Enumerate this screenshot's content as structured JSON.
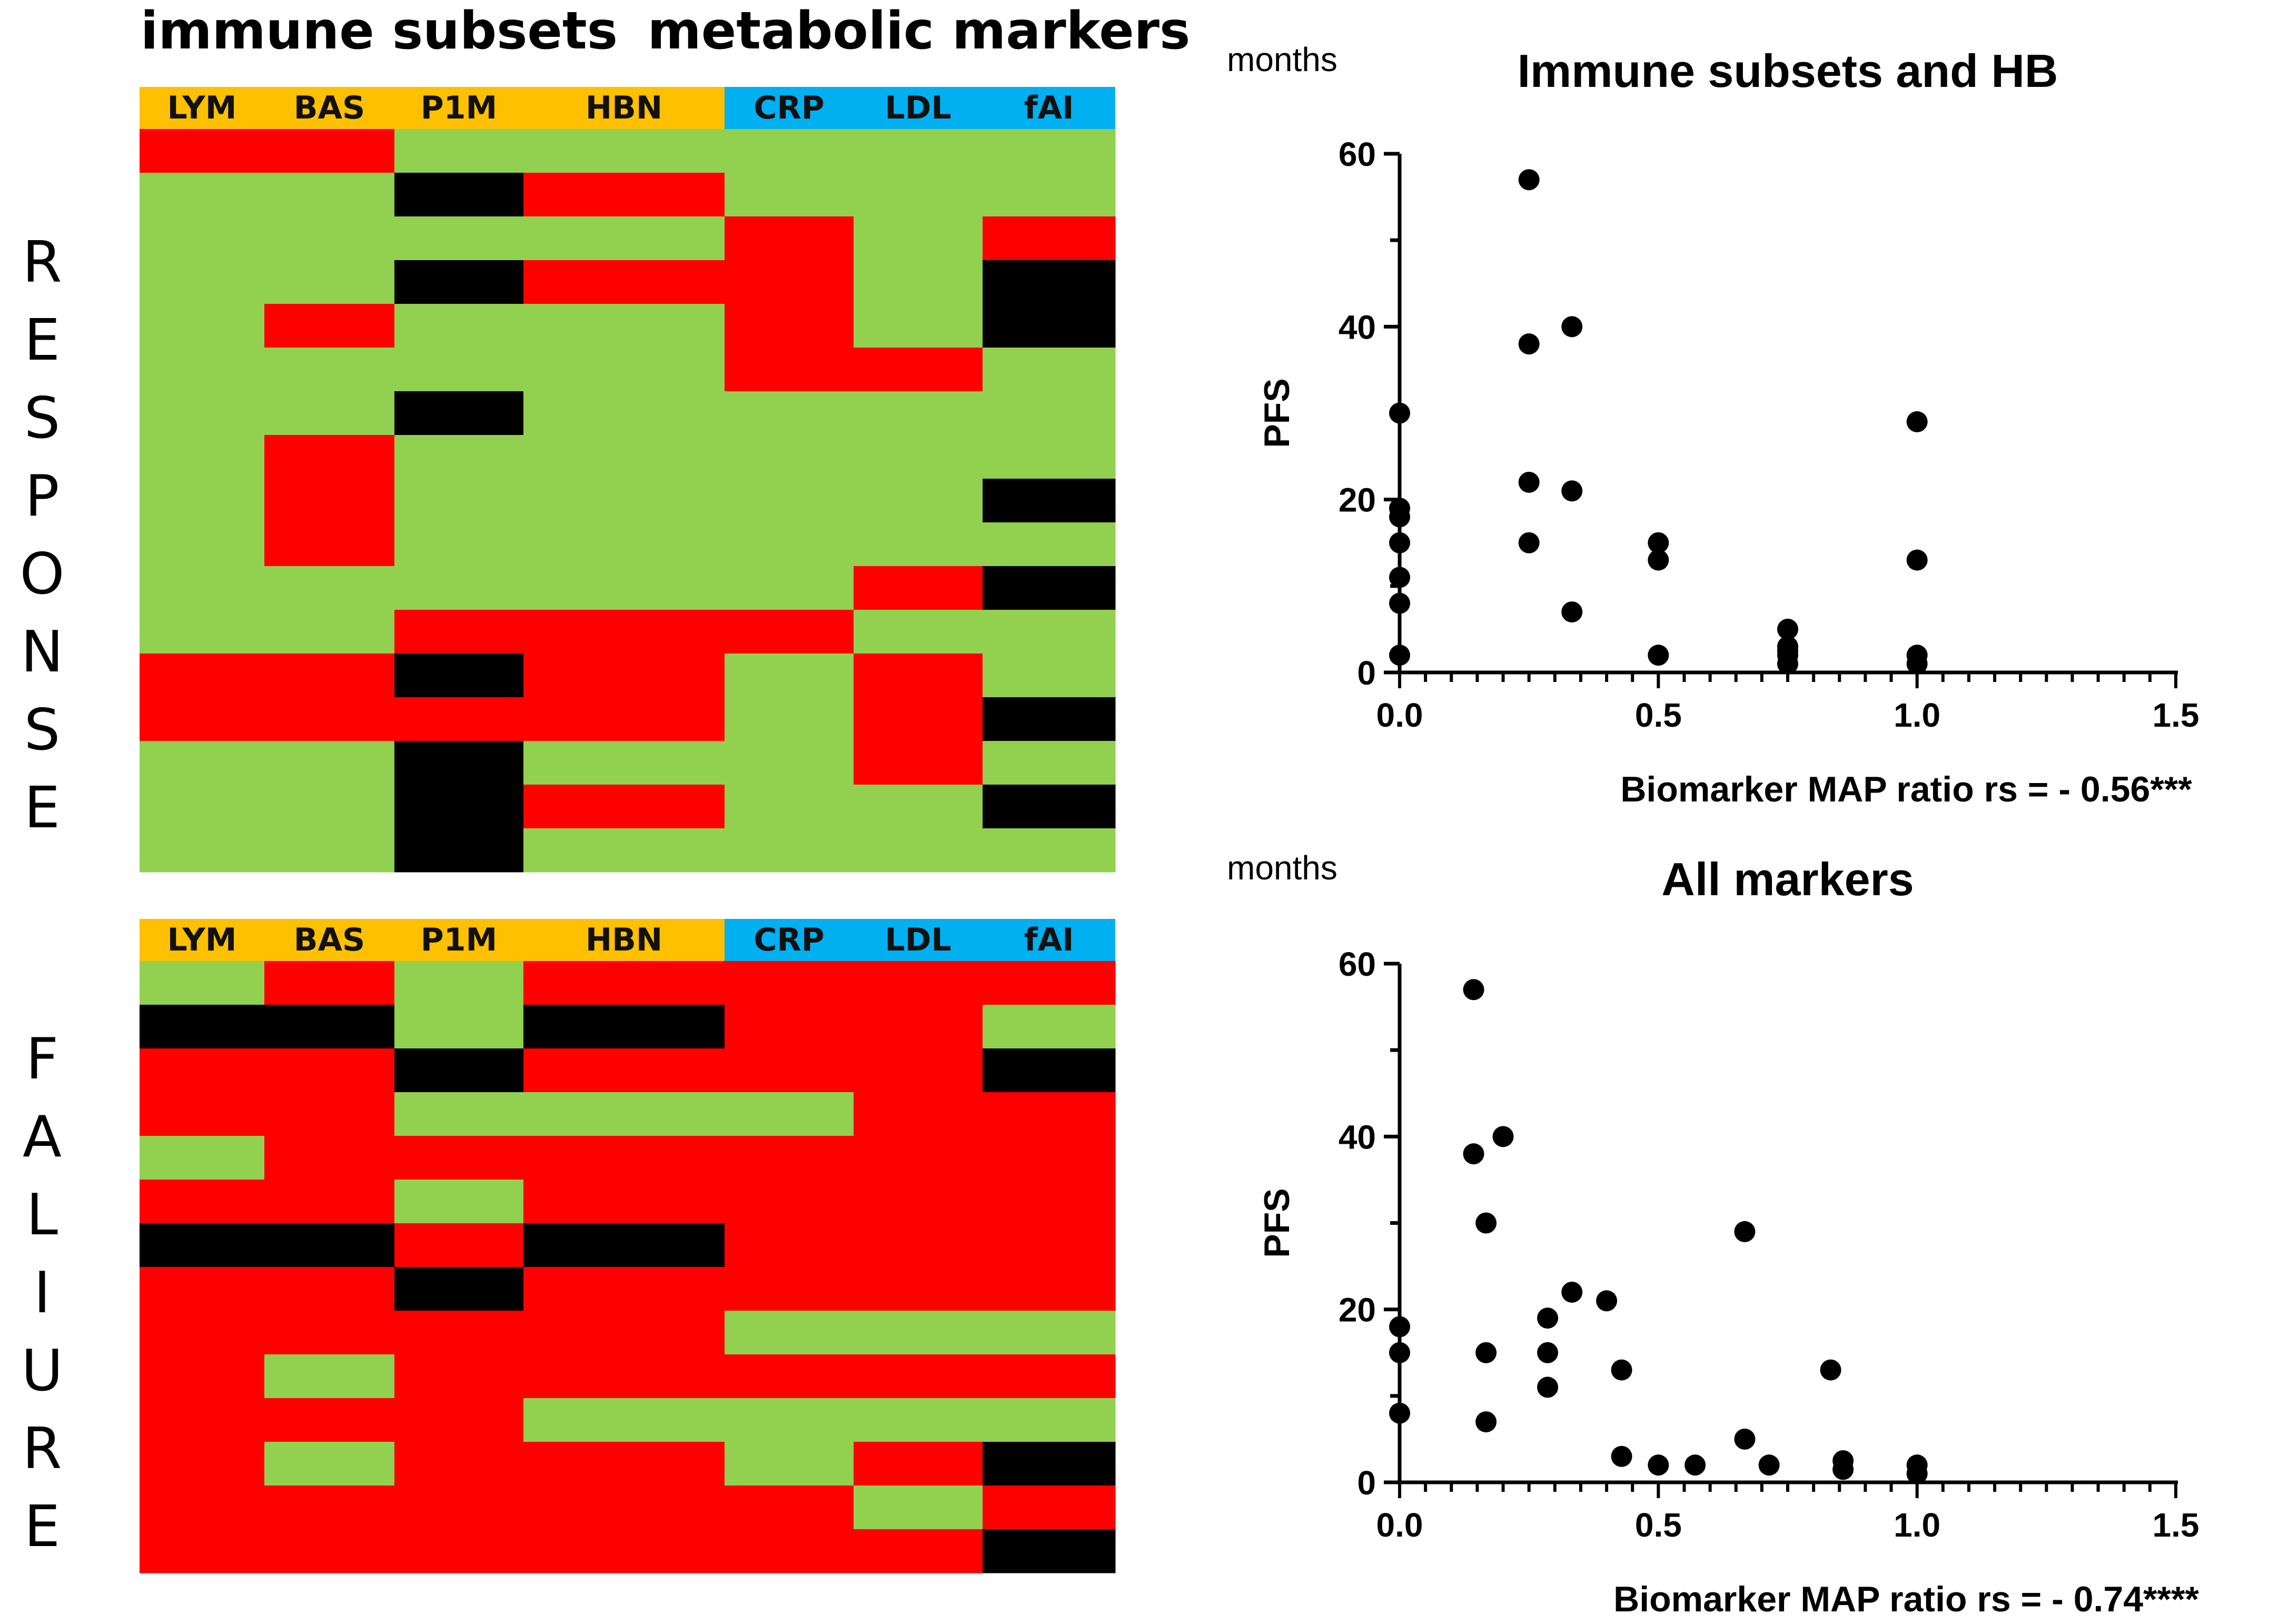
{
  "colors": {
    "red": "#ff0000",
    "green": "#92d050",
    "black": "#000000",
    "orange": "#ffc000",
    "blue": "#00b0f0"
  },
  "heatmap": {
    "group_titles": {
      "immune": "immune subsets",
      "metabolic": "metabolic markers"
    },
    "columns": [
      "LYM",
      "BAS",
      "P1M",
      "HBN",
      "CRP",
      "LDL",
      "fAI"
    ],
    "column_groups": [
      "immune",
      "immune",
      "immune",
      "immune",
      "metabolic",
      "metabolic",
      "metabolic"
    ],
    "response": {
      "letters": [
        "R",
        "E",
        "S",
        "P",
        "O",
        "N",
        "S",
        "E"
      ],
      "rows": [
        [
          "R",
          "R",
          "G",
          "G",
          "G",
          "G",
          "G"
        ],
        [
          "G",
          "G",
          "K",
          "R",
          "G",
          "G",
          "G"
        ],
        [
          "G",
          "G",
          "G",
          "G",
          "R",
          "G",
          "R"
        ],
        [
          "G",
          "G",
          "K",
          "R",
          "R",
          "G",
          "K"
        ],
        [
          "G",
          "R",
          "G",
          "G",
          "R",
          "G",
          "K"
        ],
        [
          "G",
          "G",
          "G",
          "G",
          "R",
          "R",
          "G"
        ],
        [
          "G",
          "G",
          "K",
          "G",
          "G",
          "G",
          "G"
        ],
        [
          "G",
          "R",
          "G",
          "G",
          "G",
          "G",
          "G"
        ],
        [
          "G",
          "R",
          "G",
          "G",
          "G",
          "G",
          "K"
        ],
        [
          "G",
          "R",
          "G",
          "G",
          "G",
          "G",
          "G"
        ],
        [
          "G",
          "G",
          "G",
          "G",
          "G",
          "R",
          "K"
        ],
        [
          "G",
          "G",
          "R",
          "R",
          "R",
          "G",
          "G"
        ],
        [
          "R",
          "R",
          "K",
          "R",
          "G",
          "R",
          "G"
        ],
        [
          "R",
          "R",
          "R",
          "R",
          "G",
          "R",
          "K"
        ],
        [
          "G",
          "G",
          "K",
          "G",
          "G",
          "R",
          "G"
        ],
        [
          "G",
          "G",
          "K",
          "R",
          "G",
          "G",
          "K"
        ],
        [
          "G",
          "G",
          "K",
          "G",
          "G",
          "G",
          "G"
        ]
      ]
    },
    "failure": {
      "letters": [
        "F",
        "A",
        "L",
        "I",
        "U",
        "R",
        "E"
      ],
      "rows": [
        [
          "G",
          "R",
          "G",
          "R",
          "R",
          "R",
          "R"
        ],
        [
          "K",
          "K",
          "G",
          "K",
          "R",
          "R",
          "G"
        ],
        [
          "R",
          "R",
          "K",
          "R",
          "R",
          "R",
          "K"
        ],
        [
          "R",
          "R",
          "G",
          "G",
          "G",
          "R",
          "R"
        ],
        [
          "G",
          "R",
          "R",
          "R",
          "R",
          "R",
          "R"
        ],
        [
          "R",
          "R",
          "G",
          "R",
          "R",
          "R",
          "R"
        ],
        [
          "K",
          "K",
          "R",
          "K",
          "R",
          "R",
          "R"
        ],
        [
          "R",
          "R",
          "K",
          "R",
          "R",
          "R",
          "R"
        ],
        [
          "R",
          "R",
          "R",
          "R",
          "G",
          "G",
          "G"
        ],
        [
          "R",
          "G",
          "R",
          "R",
          "R",
          "R",
          "R"
        ],
        [
          "R",
          "R",
          "R",
          "G",
          "G",
          "G",
          "G"
        ],
        [
          "R",
          "G",
          "R",
          "R",
          "G",
          "R",
          "K"
        ],
        [
          "R",
          "R",
          "R",
          "R",
          "R",
          "G",
          "R"
        ],
        [
          "R",
          "R",
          "R",
          "R",
          "R",
          "R",
          "K"
        ]
      ]
    }
  },
  "chart_data": [
    {
      "type": "scatter",
      "title": "Immune subsets and HB",
      "units": "months",
      "ylabel": "PFS",
      "xlabel": "Biomarker MAP ratio  rs = - 0.56***",
      "xlim": [
        0,
        1.5
      ],
      "ylim": [
        0,
        60
      ],
      "xticks": [
        "0.0",
        "0.5",
        "1.0",
        "1.5"
      ],
      "yticks": [
        "0",
        "20",
        "40",
        "60"
      ],
      "x": [
        0,
        0,
        0,
        0,
        0,
        0,
        0,
        0.25,
        0.25,
        0.25,
        0.25,
        0.333,
        0.333,
        0.333,
        0.5,
        0.5,
        0.5,
        0.75,
        0.75,
        0.75,
        0.75,
        0.75,
        1.0,
        1.0,
        1.0,
        1.0
      ],
      "y": [
        30,
        19,
        18,
        15,
        11,
        8,
        2,
        57,
        38,
        22,
        15,
        40,
        21,
        7,
        15,
        13,
        2,
        5,
        3,
        2.5,
        2,
        1,
        29,
        13,
        2,
        1
      ]
    },
    {
      "type": "scatter",
      "title": "All markers",
      "units": "months",
      "ylabel": "PFS",
      "xlabel": "Biomarker MAP ratio  rs = - 0.74****",
      "xlim": [
        0,
        1.5
      ],
      "ylim": [
        0,
        60
      ],
      "xticks": [
        "0.0",
        "0.5",
        "1.0",
        "1.5"
      ],
      "yticks": [
        "0",
        "20",
        "40",
        "60"
      ],
      "x": [
        0,
        0,
        0,
        0.143,
        0.143,
        0.167,
        0.167,
        0.167,
        0.2,
        0.286,
        0.286,
        0.286,
        0.333,
        0.4,
        0.429,
        0.429,
        0.5,
        0.571,
        0.667,
        0.667,
        0.714,
        0.833,
        0.857,
        0.857,
        1.0,
        1.0
      ],
      "y": [
        18,
        15,
        8,
        57,
        38,
        30,
        15,
        7,
        40,
        19,
        15,
        11,
        22,
        21,
        13,
        3,
        2,
        2,
        29,
        5,
        2,
        13,
        2.5,
        1.5,
        2,
        1
      ]
    }
  ]
}
